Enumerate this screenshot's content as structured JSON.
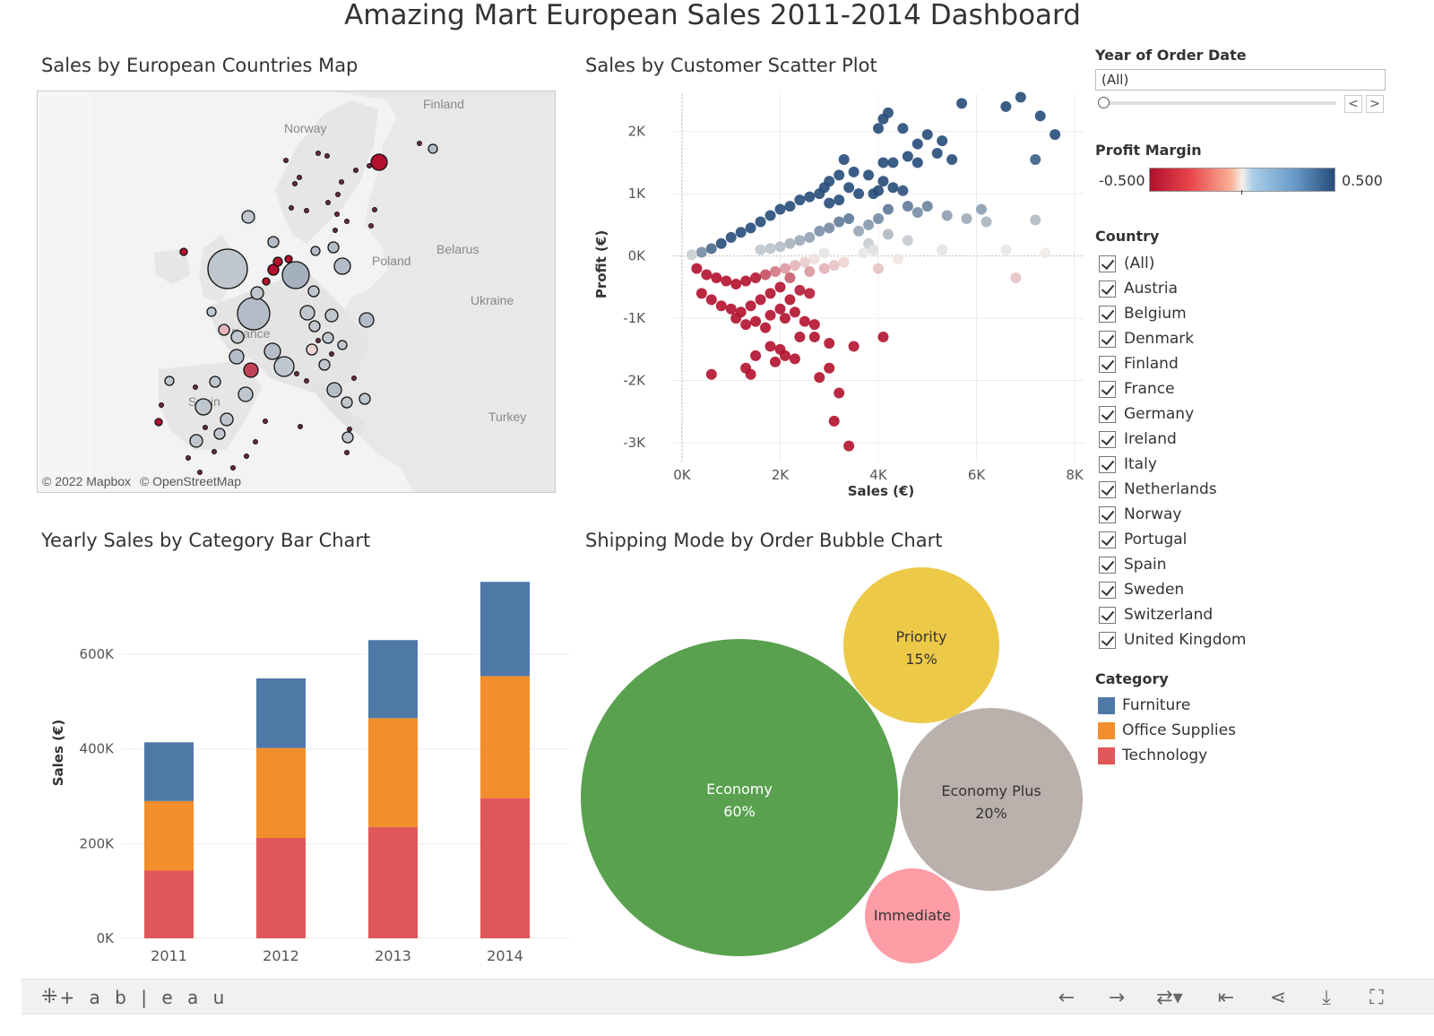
{
  "dashboard": {
    "title": "Amazing Mart European Sales 2011-2014 Dashboard"
  },
  "map": {
    "title": "Sales by European Countries Map",
    "labels": [
      "Finland",
      "Norway",
      "Poland",
      "Belarus",
      "Ukraine",
      "France",
      "Turkey",
      "Spain"
    ],
    "credits": [
      "© 2022 Mapbox",
      "© OpenStreetMap"
    ]
  },
  "scatter": {
    "title": "Sales by Customer Scatter Plot"
  },
  "bar": {
    "title": "Yearly Sales by Category Bar Chart"
  },
  "bubble": {
    "title": "Shipping Mode by Order Bubble Chart"
  },
  "chart_data": [
    {
      "type": "scatter",
      "xlabel": "Sales (€)",
      "ylabel": "Profit (€)",
      "xlim": [
        -200,
        8200
      ],
      "ylim": [
        -3300,
        2600
      ],
      "x_ticks": [
        "0K",
        "2K",
        "4K",
        "6K",
        "8K"
      ],
      "x_tick_values": [
        0,
        2000,
        4000,
        6000,
        8000
      ],
      "y_ticks": [
        "2K",
        "1K",
        "0K",
        "-1K",
        "-2K",
        "-3K"
      ],
      "y_tick_values": [
        2000,
        1000,
        0,
        -1000,
        -2000,
        -3000
      ],
      "color_by": "Profit Margin",
      "points": [
        [
          5700,
          2450
        ],
        [
          6600,
          2400
        ],
        [
          6900,
          2550
        ],
        [
          7300,
          2250
        ],
        [
          7600,
          1950
        ],
        [
          7200,
          1550
        ],
        [
          7200,
          580
        ],
        [
          4200,
          2300
        ],
        [
          4100,
          2200
        ],
        [
          4000,
          2050
        ],
        [
          4500,
          2050
        ],
        [
          5000,
          1950
        ],
        [
          5300,
          1850
        ],
        [
          4800,
          1800
        ],
        [
          5200,
          1650
        ],
        [
          4600,
          1600
        ],
        [
          4100,
          1500
        ],
        [
          3300,
          1550
        ],
        [
          4300,
          1500
        ],
        [
          5500,
          1550
        ],
        [
          4800,
          1500
        ],
        [
          3500,
          1350
        ],
        [
          3800,
          1300
        ],
        [
          4100,
          1200
        ],
        [
          4300,
          1100
        ],
        [
          4000,
          1050
        ],
        [
          3900,
          1000
        ],
        [
          4500,
          1050
        ],
        [
          3200,
          1300
        ],
        [
          3000,
          1200
        ],
        [
          2900,
          1100
        ],
        [
          2800,
          1000
        ],
        [
          2600,
          950
        ],
        [
          2400,
          900
        ],
        [
          2200,
          800
        ],
        [
          2000,
          750
        ],
        [
          1800,
          650
        ],
        [
          1600,
          550
        ],
        [
          1400,
          450
        ],
        [
          1200,
          380
        ],
        [
          1000,
          300
        ],
        [
          800,
          200
        ],
        [
          600,
          120
        ],
        [
          400,
          60
        ],
        [
          200,
          20
        ],
        [
          3400,
          1100
        ],
        [
          3600,
          1000
        ],
        [
          3200,
          900
        ],
        [
          3000,
          850
        ],
        [
          4600,
          800
        ],
        [
          4800,
          700
        ],
        [
          5000,
          800
        ],
        [
          5400,
          650
        ],
        [
          5800,
          600
        ],
        [
          6100,
          750
        ],
        [
          6200,
          550
        ],
        [
          4200,
          750
        ],
        [
          4000,
          600
        ],
        [
          3800,
          500
        ],
        [
          3600,
          400
        ],
        [
          3400,
          600
        ],
        [
          3200,
          550
        ],
        [
          3000,
          450
        ],
        [
          2800,
          400
        ],
        [
          2600,
          300
        ],
        [
          2400,
          250
        ],
        [
          2200,
          200
        ],
        [
          2000,
          150
        ],
        [
          1800,
          120
        ],
        [
          1600,
          100
        ],
        [
          3800,
          200
        ],
        [
          4200,
          350
        ],
        [
          4600,
          250
        ],
        [
          5300,
          100
        ],
        [
          6600,
          100
        ],
        [
          7400,
          50
        ],
        [
          3900,
          100
        ],
        [
          3700,
          50
        ],
        [
          2900,
          50
        ],
        [
          2700,
          -50
        ],
        [
          2500,
          -100
        ],
        [
          2300,
          -150
        ],
        [
          2100,
          -200
        ],
        [
          1900,
          -250
        ],
        [
          1700,
          -300
        ],
        [
          1500,
          -350
        ],
        [
          1300,
          -400
        ],
        [
          1100,
          -450
        ],
        [
          900,
          -400
        ],
        [
          700,
          -350
        ],
        [
          500,
          -300
        ],
        [
          300,
          -200
        ],
        [
          3300,
          -100
        ],
        [
          3100,
          -150
        ],
        [
          2900,
          -200
        ],
        [
          2600,
          -250
        ],
        [
          4000,
          -200
        ],
        [
          4400,
          -50
        ],
        [
          6800,
          -350
        ],
        [
          2200,
          -350
        ],
        [
          2000,
          -500
        ],
        [
          1800,
          -600
        ],
        [
          1600,
          -700
        ],
        [
          1400,
          -800
        ],
        [
          1200,
          -900
        ],
        [
          1000,
          -850
        ],
        [
          800,
          -800
        ],
        [
          600,
          -700
        ],
        [
          400,
          -600
        ],
        [
          2400,
          -550
        ],
        [
          2600,
          -600
        ],
        [
          2200,
          -700
        ],
        [
          2000,
          -850
        ],
        [
          1800,
          -950
        ],
        [
          1500,
          -1050
        ],
        [
          1300,
          -1100
        ],
        [
          1100,
          -1000
        ],
        [
          2300,
          -900
        ],
        [
          2100,
          -1000
        ],
        [
          2500,
          -1050
        ],
        [
          1700,
          -1150
        ],
        [
          2400,
          -1300
        ],
        [
          2700,
          -1100
        ],
        [
          2700,
          -1300
        ],
        [
          3000,
          -1400
        ],
        [
          3500,
          -1450
        ],
        [
          4100,
          -1300
        ],
        [
          1800,
          -1450
        ],
        [
          1500,
          -1600
        ],
        [
          2000,
          -1500
        ],
        [
          2100,
          -1600
        ],
        [
          1900,
          -1700
        ],
        [
          2300,
          -1650
        ],
        [
          1300,
          -1800
        ],
        [
          1400,
          -1900
        ],
        [
          3000,
          -1800
        ],
        [
          600,
          -1900
        ],
        [
          2800,
          -1950
        ],
        [
          3200,
          -2200
        ],
        [
          3100,
          -2650
        ],
        [
          3400,
          -3050
        ]
      ]
    },
    {
      "type": "bar",
      "stacked": true,
      "categories": [
        "2011",
        "2012",
        "2013",
        "2014"
      ],
      "ylabel": "Sales (€)",
      "ylim": [
        0,
        780000
      ],
      "y_ticks": [
        "600K",
        "400K",
        "200K",
        "0K"
      ],
      "y_tick_values": [
        600000,
        400000,
        200000,
        0
      ],
      "series": [
        {
          "name": "Technology",
          "color": "#e15759",
          "values": [
            143000,
            212000,
            235000,
            296000
          ]
        },
        {
          "name": "Office Supplies",
          "color": "#f28e2b",
          "values": [
            147000,
            190000,
            230000,
            258000
          ]
        },
        {
          "name": "Furniture",
          "color": "#4e79a7",
          "values": [
            124000,
            147000,
            165000,
            199000
          ]
        }
      ]
    },
    {
      "type": "bubble",
      "series": [
        {
          "name": "Economy",
          "label": "60%",
          "value": 60,
          "color": "#59a14f",
          "text_color": "#ffffff"
        },
        {
          "name": "Priority",
          "label": "15%",
          "value": 15,
          "color": "#edc948",
          "text_color": "#333333"
        },
        {
          "name": "Economy Plus",
          "label": "20%",
          "value": 20,
          "color": "#bab0ac",
          "text_color": "#333333"
        },
        {
          "name": "Immediate",
          "label": "",
          "value": 5,
          "color": "#ff9da7",
          "text_color": "#333333"
        }
      ]
    }
  ],
  "filters": {
    "year": {
      "title": "Year of Order Date",
      "value": "(All)",
      "prev": "<",
      "next": ">"
    },
    "profit_margin": {
      "title": "Profit Margin",
      "min_label": "-0.500",
      "max_label": "0.500",
      "colors": [
        "#b2112d",
        "#f5f0ea",
        "#264d79"
      ]
    },
    "country": {
      "title": "Country",
      "items": [
        "(All)",
        "Austria",
        "Belgium",
        "Denmark",
        "Finland",
        "France",
        "Germany",
        "Ireland",
        "Italy",
        "Netherlands",
        "Norway",
        "Portugal",
        "Spain",
        "Sweden",
        "Switzerland",
        "United Kingdom"
      ]
    },
    "category": {
      "title": "Category",
      "items": [
        {
          "name": "Furniture",
          "color": "#4e79a7"
        },
        {
          "name": "Office Supplies",
          "color": "#f28e2b"
        },
        {
          "name": "Technology",
          "color": "#e15759"
        }
      ]
    }
  },
  "footer": {
    "logo_text": "+ a b | e a u",
    "icons": [
      "undo-icon",
      "redo-icon",
      "revert-icon",
      "reset-icon",
      "share-icon",
      "download-icon",
      "fullscreen-icon"
    ]
  }
}
